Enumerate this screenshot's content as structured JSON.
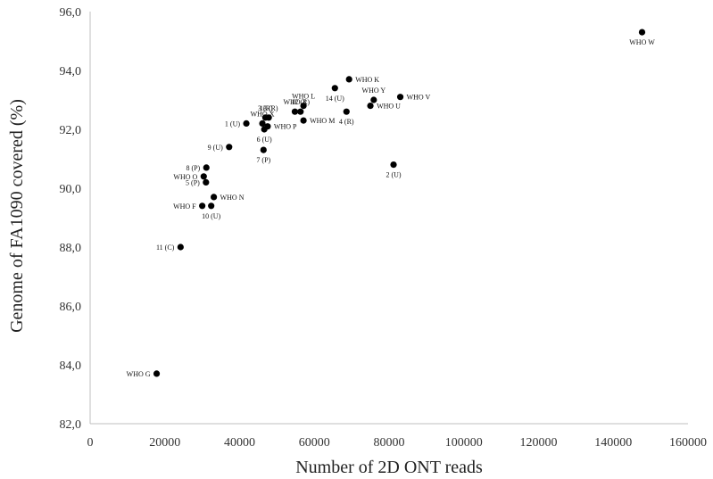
{
  "chart_data": {
    "type": "scatter",
    "xlabel": "Number of 2D ONT reads",
    "ylabel": "Genome of FA1090 covered (%)",
    "xlim": [
      0,
      160000
    ],
    "ylim": [
      82,
      96
    ],
    "x_ticks": [
      "0",
      "20000",
      "40000",
      "60000",
      "80000",
      "100000",
      "120000",
      "140000",
      "160000"
    ],
    "y_ticks": [
      "82,0",
      "84,0",
      "86,0",
      "88,0",
      "90,0",
      "92,0",
      "94,0",
      "96,0"
    ],
    "grid": false,
    "legend": "none",
    "marker_color": "#000000",
    "points": [
      {
        "x": 147700,
        "y": 95.3,
        "label": "WHO W",
        "pos": "below"
      },
      {
        "x": 69300,
        "y": 93.7,
        "label": "WHO K",
        "pos": "right"
      },
      {
        "x": 65500,
        "y": 93.4,
        "label": "14 (U)",
        "pos": "below"
      },
      {
        "x": 57100,
        "y": 92.8,
        "label": "WHO L",
        "pos": "above"
      },
      {
        "x": 56300,
        "y": 92.6,
        "label": "12 (R)",
        "pos": "above"
      },
      {
        "x": 54800,
        "y": 92.6,
        "label": "WHO Z",
        "pos": "above"
      },
      {
        "x": 57100,
        "y": 92.3,
        "label": "WHO M",
        "pos": "right"
      },
      {
        "x": 47800,
        "y": 92.4,
        "label": "13 (R)",
        "pos": "above"
      },
      {
        "x": 46900,
        "y": 92.4,
        "label": "3 (R)",
        "pos": "above"
      },
      {
        "x": 46100,
        "y": 92.2,
        "label": "WHO X",
        "pos": "above"
      },
      {
        "x": 47500,
        "y": 92.1,
        "label": "WHO P",
        "pos": "right"
      },
      {
        "x": 46600,
        "y": 92.0,
        "label": "6 (U)",
        "pos": "below"
      },
      {
        "x": 41800,
        "y": 92.2,
        "label": "1 (U)",
        "pos": "left"
      },
      {
        "x": 46400,
        "y": 91.3,
        "label": "7 (P)",
        "pos": "below"
      },
      {
        "x": 37200,
        "y": 91.4,
        "label": "9 (U)",
        "pos": "left"
      },
      {
        "x": 68600,
        "y": 92.6,
        "label": "4 (R)",
        "pos": "below"
      },
      {
        "x": 75900,
        "y": 93.0,
        "label": "WHO Y",
        "pos": "above"
      },
      {
        "x": 75000,
        "y": 92.8,
        "label": "WHO U",
        "pos": "right"
      },
      {
        "x": 83000,
        "y": 93.1,
        "label": "WHO V",
        "pos": "right"
      },
      {
        "x": 81200,
        "y": 90.8,
        "label": "2 (U)",
        "pos": "below"
      },
      {
        "x": 31100,
        "y": 90.7,
        "label": "8 (P)",
        "pos": "left"
      },
      {
        "x": 30400,
        "y": 90.4,
        "label": "WHO O",
        "pos": "left"
      },
      {
        "x": 31000,
        "y": 90.2,
        "label": "5 (P)",
        "pos": "left"
      },
      {
        "x": 33100,
        "y": 89.7,
        "label": "WHO N",
        "pos": "right"
      },
      {
        "x": 32400,
        "y": 89.4,
        "label": "10 (U)",
        "pos": "below"
      },
      {
        "x": 30000,
        "y": 89.4,
        "label": "WHO F",
        "pos": "left"
      },
      {
        "x": 24200,
        "y": 88.0,
        "label": "11 (C)",
        "pos": "left"
      },
      {
        "x": 17800,
        "y": 83.7,
        "label": "WHO G",
        "pos": "left"
      }
    ]
  }
}
